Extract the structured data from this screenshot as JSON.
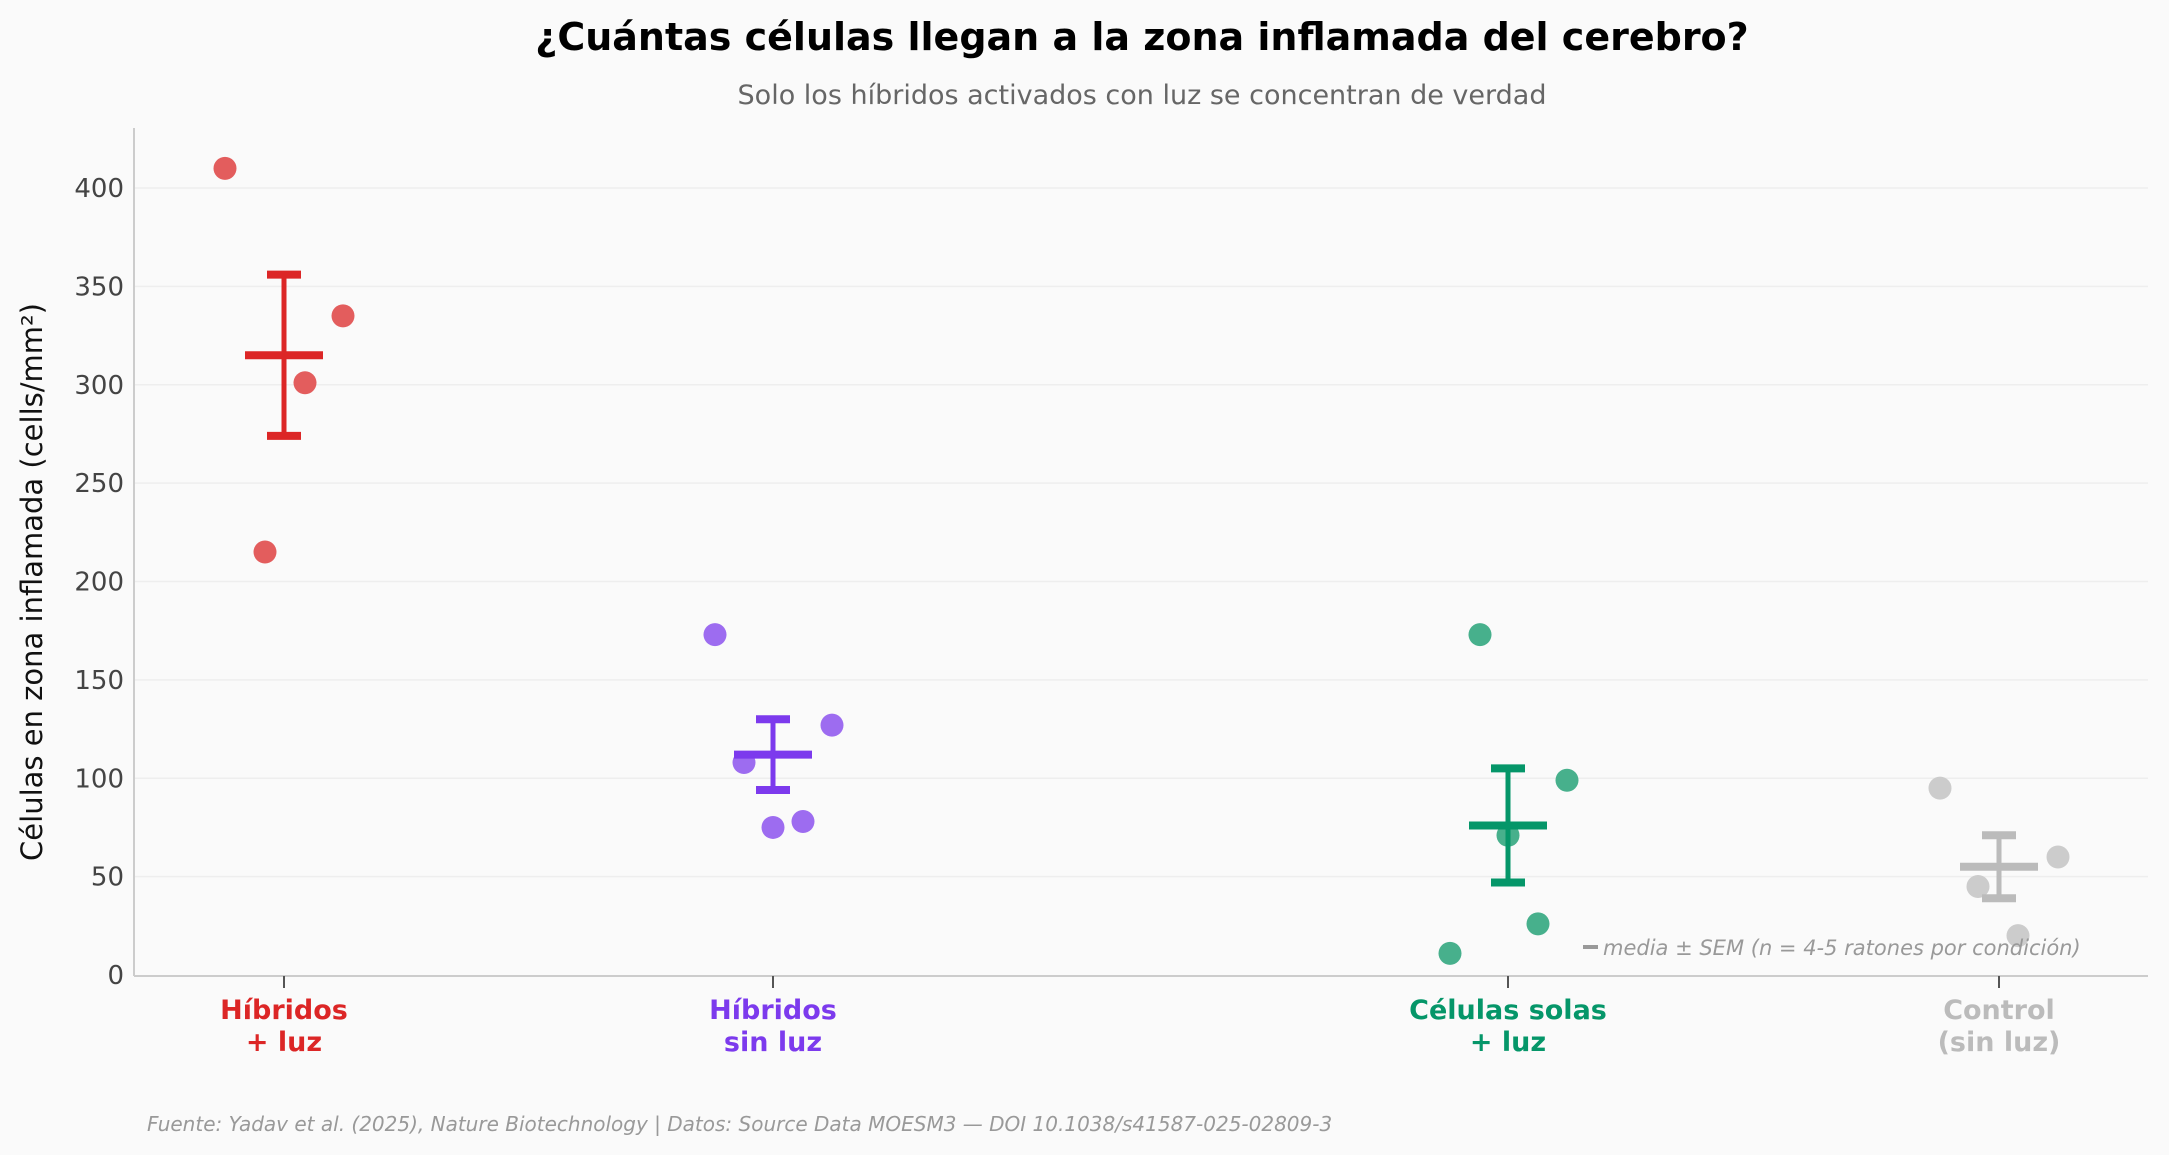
{
  "chart_data": {
    "type": "scatter",
    "title": "¿Cuántas células llegan a la zona inflamada del cerebro?",
    "subtitle": "Solo los híbridos activados con luz se concentran de verdad",
    "ylabel": "Células en zona inflamada (cells/mm²)",
    "xlabel": "",
    "ylim": [
      0,
      430
    ],
    "yticks": [
      0,
      50,
      100,
      150,
      200,
      250,
      300,
      350,
      400
    ],
    "grid": "horizontal",
    "groups": [
      {
        "label_lines": [
          "Híbridos",
          "+ luz"
        ],
        "color": "#dc2626",
        "point_color": "#e35d5d",
        "values": [
          410,
          335,
          301,
          215
        ],
        "mean": 315,
        "sem": 41
      },
      {
        "label_lines": [
          "Híbridos",
          "sin luz"
        ],
        "color": "#7c3aed",
        "point_color": "#9d6cf0",
        "values": [
          173,
          108,
          75,
          78,
          127
        ],
        "mean": 112,
        "sem": 18
      },
      {
        "label_lines": [
          "Células solas",
          "+ luz"
        ],
        "color": "#059669",
        "point_color": "#47b08c",
        "values": [
          173,
          99,
          71,
          26,
          11
        ],
        "mean": 76,
        "sem": 29
      },
      {
        "label_lines": [
          "Control",
          "(sin luz)"
        ],
        "color": "#bbbbbb",
        "point_color": "#cccccc",
        "values": [
          95,
          45,
          20,
          60
        ],
        "mean": 55,
        "sem": 16
      }
    ],
    "annotation": "media ± SEM (n = 4-5 ratones por condición)",
    "footer": "Fuente: Yadav et al. (2025), Nature Biotechnology | Datos: Source Data MOESM3 — DOI 10.1038/s41587-025-02809-3"
  }
}
